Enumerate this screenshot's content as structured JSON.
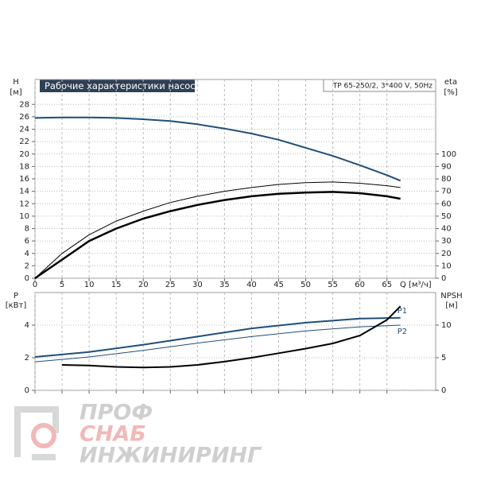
{
  "chart_data": [
    {
      "type": "line",
      "title": "Рабочие характеристики насоса",
      "model": "TP 65-250/2, 3*400 V, 50Hz",
      "y_label": "H",
      "y_unit": "[м]",
      "y2_label": "eta",
      "y2_unit": "[%]",
      "x_label": "Q [м³/ч]",
      "xlim": [
        0,
        74
      ],
      "xticks": [
        0,
        5,
        10,
        15,
        20,
        25,
        30,
        35,
        40,
        45,
        50,
        55,
        60,
        65
      ],
      "ylim": [
        0,
        32
      ],
      "yticks": [
        0,
        2,
        4,
        6,
        8,
        10,
        12,
        14,
        16,
        18,
        20,
        22,
        24,
        26,
        28
      ],
      "y2lim": [
        0,
        160
      ],
      "y2ticks": [
        0,
        10,
        20,
        30,
        40,
        50,
        60,
        70,
        80,
        90,
        100
      ],
      "grid": true,
      "series": [
        {
          "color": "#1f4e79",
          "width": 2,
          "x": [
            0,
            5,
            10,
            15,
            20,
            25,
            30,
            35,
            40,
            45,
            50,
            55,
            60,
            65,
            67.5
          ],
          "values": [
            25.8,
            25.9,
            25.9,
            25.8,
            25.6,
            25.3,
            24.8,
            24.1,
            23.3,
            22.3,
            21.0,
            19.7,
            18.2,
            16.6,
            15.7
          ]
        },
        {
          "color": "#000000",
          "width": 1,
          "axis": "y2",
          "x": [
            0,
            5,
            10,
            15,
            20,
            25,
            30,
            35,
            40,
            45,
            50,
            55,
            60,
            65,
            67.5
          ],
          "values": [
            0,
            20,
            35,
            46,
            54,
            61,
            66,
            70,
            73,
            75.5,
            77,
            77.5,
            76.5,
            74.5,
            73
          ]
        },
        {
          "color": "#000000",
          "width": 2.5,
          "axis": "y2",
          "x": [
            0,
            5,
            10,
            15,
            20,
            25,
            30,
            35,
            40,
            45,
            50,
            55,
            60,
            65,
            67.5
          ],
          "values": [
            0,
            15,
            30,
            40,
            48,
            54,
            59,
            63,
            66,
            68,
            69,
            69.5,
            68.5,
            66,
            64
          ]
        }
      ]
    },
    {
      "type": "line",
      "y_label": "P",
      "y_unit": "[кВт]",
      "y2_label": "NPSH",
      "y2_unit": "[м]",
      "xlim": [
        0,
        74
      ],
      "ylim": [
        0,
        6
      ],
      "yticks": [
        0,
        2,
        4
      ],
      "y2lim": [
        0,
        15
      ],
      "y2ticks": [
        0,
        5,
        10
      ],
      "grid": true,
      "series": [
        {
          "name": "P1",
          "color": "#1f4e79",
          "width": 2,
          "x": [
            0,
            5,
            10,
            20,
            30,
            40,
            50,
            60,
            67.5
          ],
          "values": [
            2.05,
            2.2,
            2.35,
            2.8,
            3.3,
            3.8,
            4.15,
            4.4,
            4.45
          ]
        },
        {
          "name": "P2",
          "color": "#1f4e79",
          "width": 1,
          "x": [
            0,
            5,
            10,
            20,
            30,
            40,
            50,
            60,
            67.5
          ],
          "values": [
            1.75,
            1.9,
            2.05,
            2.45,
            2.9,
            3.3,
            3.65,
            3.9,
            4.0
          ]
        },
        {
          "color": "#000000",
          "width": 2,
          "axis": "y2",
          "x": [
            5,
            10,
            15,
            20,
            25,
            30,
            35,
            40,
            45,
            50,
            55,
            60,
            65,
            67.5
          ],
          "values": [
            3.9,
            3.8,
            3.6,
            3.5,
            3.6,
            3.9,
            4.4,
            5.0,
            5.7,
            6.4,
            7.2,
            8.4,
            10.8,
            12.9
          ]
        }
      ]
    }
  ],
  "watermark": {
    "line1": "ПРОФ",
    "line2": "СНАБ",
    "line3": "ИНЖИНИРИНГ"
  }
}
